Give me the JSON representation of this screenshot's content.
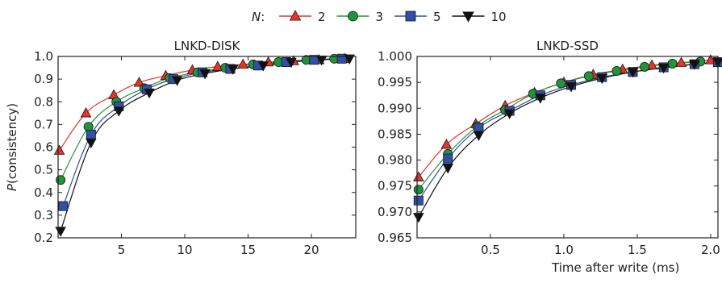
{
  "legend": {
    "prefix_var": "N",
    "prefix_colon": ":",
    "entries": [
      "2",
      "3",
      "5",
      "10"
    ]
  },
  "series_styles": [
    {
      "marker": "triangle-up",
      "line_color": "#e8322a",
      "fill": "#e8322a"
    },
    {
      "marker": "circle",
      "line_color": "#20943a",
      "fill": "#20943a"
    },
    {
      "marker": "square",
      "line_color": "#2f4fa8",
      "fill": "#2f4fa8"
    },
    {
      "marker": "triangle-down",
      "line_color": "#111111",
      "fill": "#111111"
    }
  ],
  "chart_data": [
    {
      "type": "line",
      "title": "LNKD-DISK",
      "xlabel": "",
      "ylabel": "P(consistency)",
      "ylabel_var": "P",
      "ylabel_rest": "(consistency)",
      "xlim": [
        0,
        23.5
      ],
      "ylim": [
        0.2,
        1.0
      ],
      "xticks": [
        5,
        10,
        15,
        20
      ],
      "xtick_labels": [
        "5",
        "10",
        "15",
        "20"
      ],
      "yticks": [
        0.2,
        0.3,
        0.4,
        0.5,
        0.6,
        0.7,
        0.8,
        0.9,
        1.0
      ],
      "ytick_labels": [
        "0.2",
        "0.3",
        "0.4",
        "0.5",
        "0.6",
        "0.7",
        "0.8",
        "0.9",
        "1.0"
      ],
      "grid": false,
      "legend_placement": "top-center",
      "series": [
        {
          "name": "2",
          "x": [
            0.1,
            2.2,
            4.4,
            6.4,
            8.5,
            10.6,
            12.6,
            14.6,
            16.6,
            18.6,
            20.6,
            22.6
          ],
          "y": [
            0.585,
            0.75,
            0.83,
            0.885,
            0.915,
            0.94,
            0.955,
            0.965,
            0.975,
            0.98,
            0.985,
            0.99
          ]
        },
        {
          "name": "3",
          "x": [
            0.2,
            2.4,
            4.6,
            6.8,
            8.8,
            11.0,
            13.2,
            15.4,
            17.4,
            19.6,
            21.8
          ],
          "y": [
            0.455,
            0.69,
            0.8,
            0.86,
            0.905,
            0.93,
            0.95,
            0.965,
            0.975,
            0.985,
            0.99
          ]
        },
        {
          "name": "5",
          "x": [
            0.4,
            2.6,
            4.8,
            7.0,
            9.1,
            11.4,
            13.6,
            15.8,
            18.0,
            20.2,
            22.4
          ],
          "y": [
            0.34,
            0.655,
            0.78,
            0.855,
            0.9,
            0.93,
            0.945,
            0.96,
            0.975,
            0.985,
            0.99
          ]
        },
        {
          "name": "10",
          "x": [
            0.2,
            2.6,
            4.8,
            7.2,
            9.4,
            11.6,
            13.8,
            16.2,
            18.4,
            20.8,
            23.0
          ],
          "y": [
            0.23,
            0.62,
            0.76,
            0.84,
            0.895,
            0.925,
            0.945,
            0.96,
            0.975,
            0.985,
            0.99
          ]
        }
      ]
    },
    {
      "type": "line",
      "title": "LNKD-SSD",
      "xlabel": "Time after write (ms)",
      "ylabel": "",
      "xlim": [
        0,
        2.05
      ],
      "ylim": [
        0.965,
        1.0
      ],
      "xticks": [
        0.5,
        1.0,
        1.5,
        2.0
      ],
      "xtick_labels": [
        "0.5",
        "1.0",
        "1.5",
        "2.0"
      ],
      "yticks": [
        0.965,
        0.97,
        0.975,
        0.98,
        0.985,
        0.99,
        0.995,
        1.0
      ],
      "ytick_labels": [
        "0.965",
        "0.970",
        "0.975",
        "0.980",
        "0.985",
        "0.990",
        "0.995",
        "1.000"
      ],
      "grid": false,
      "series": [
        {
          "name": "2",
          "x": [
            0.01,
            0.2,
            0.4,
            0.6,
            0.8,
            1.0,
            1.2,
            1.4,
            1.6,
            1.8,
            2.0
          ],
          "y": [
            0.9767,
            0.983,
            0.987,
            0.9905,
            0.993,
            0.995,
            0.9965,
            0.9975,
            0.9983,
            0.9988,
            0.9993
          ]
        },
        {
          "name": "3",
          "x": [
            0.01,
            0.21,
            0.41,
            0.6,
            0.79,
            0.98,
            1.17,
            1.36,
            1.55,
            1.74,
            1.93
          ],
          "y": [
            0.9743,
            0.9812,
            0.9865,
            0.9897,
            0.9928,
            0.9948,
            0.9962,
            0.9972,
            0.998,
            0.9986,
            0.999
          ]
        },
        {
          "name": "5",
          "x": [
            0.01,
            0.21,
            0.42,
            0.63,
            0.84,
            1.05,
            1.26,
            1.47,
            1.68,
            1.89,
            2.05
          ],
          "y": [
            0.9722,
            0.9803,
            0.9862,
            0.9895,
            0.9925,
            0.9945,
            0.996,
            0.997,
            0.9979,
            0.9985,
            0.9989
          ]
        },
        {
          "name": "10",
          "x": [
            0.01,
            0.21,
            0.42,
            0.63,
            0.84,
            1.05,
            1.26,
            1.47,
            1.68,
            1.89,
            2.05
          ],
          "y": [
            0.969,
            0.9785,
            0.9848,
            0.989,
            0.992,
            0.9942,
            0.9958,
            0.997,
            0.9978,
            0.9985,
            0.9989
          ]
        }
      ]
    }
  ]
}
